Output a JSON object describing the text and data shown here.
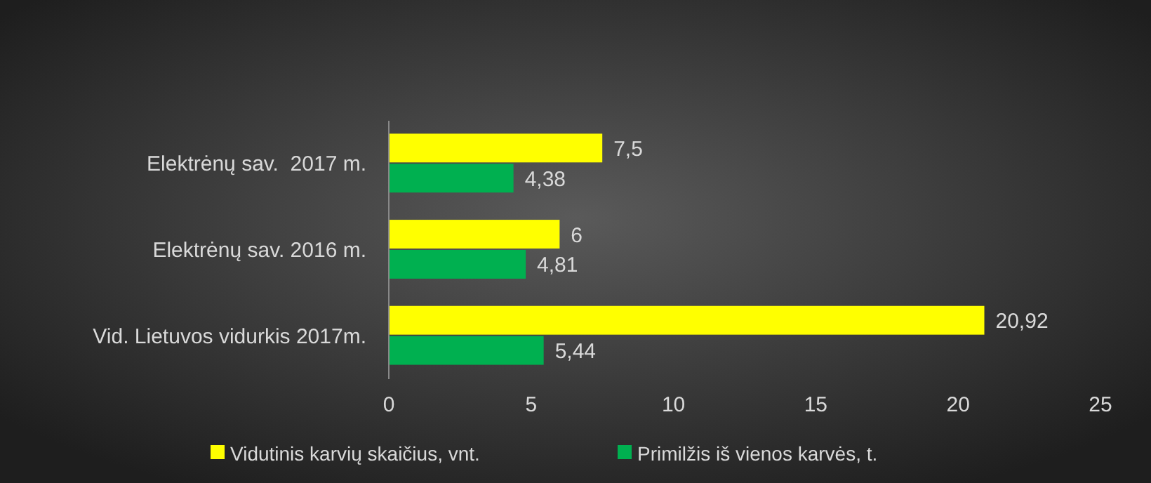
{
  "chart_data": {
    "type": "bar",
    "orientation": "horizontal",
    "categories": [
      "Elektrėnų sav.  2017 m.",
      "Elektrėnų sav. 2016 m.",
      "Vid. Lietuvos vidurkis 2017m."
    ],
    "series": [
      {
        "name": "Vidutinis karvių skaičius, vnt.",
        "color": "#ffff00",
        "values": [
          7.5,
          6,
          20.92
        ],
        "value_labels": [
          "7,5",
          "6",
          "20,92"
        ]
      },
      {
        "name": "Primilžis iš vienos karvės, t.",
        "color": "#00b050",
        "values": [
          4.38,
          4.81,
          5.44
        ],
        "value_labels": [
          "4,38",
          "4,81",
          "5,44"
        ]
      }
    ],
    "xlim": [
      0,
      25
    ],
    "xticks": [
      0,
      5,
      10,
      15,
      20,
      25
    ],
    "legend": "bottom"
  }
}
